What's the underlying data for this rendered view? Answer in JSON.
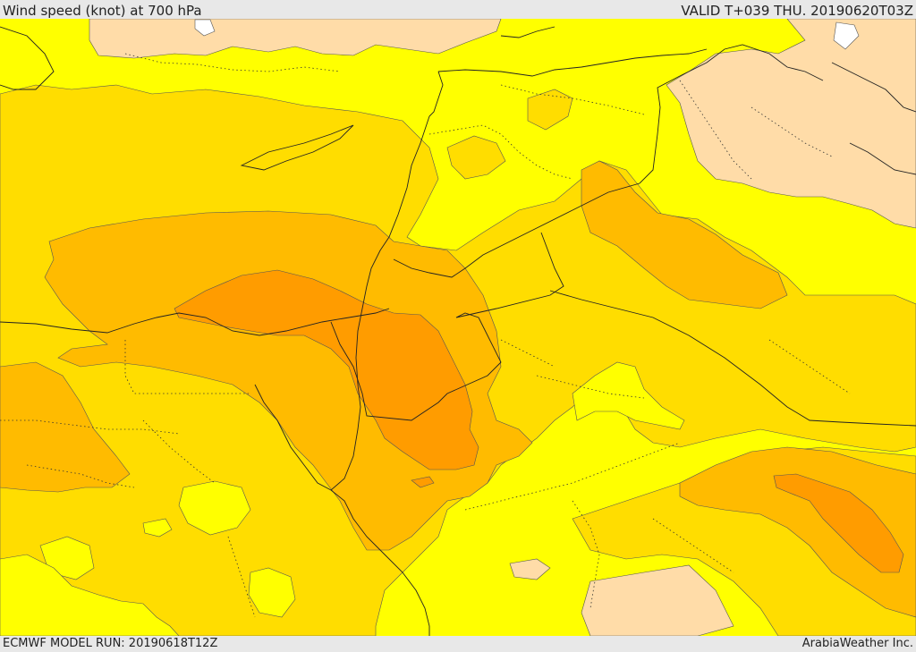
{
  "header": {
    "title": "Wind speed (knot) at 700 hPa",
    "valid": "VALID T+039 THU. 20190620T03Z"
  },
  "footer": {
    "model_run": "ECMWF MODEL RUN: 20190618T12Z",
    "credit": "ArabiaWeather Inc."
  },
  "map_colors": {
    "sea_level_calm": "#ffdca8",
    "band_1": "#ffff00",
    "band_2": "#ffdd00",
    "band_3": "#ffbb00",
    "band_4": "#ff9c00",
    "water_white": "#ffffff"
  }
}
